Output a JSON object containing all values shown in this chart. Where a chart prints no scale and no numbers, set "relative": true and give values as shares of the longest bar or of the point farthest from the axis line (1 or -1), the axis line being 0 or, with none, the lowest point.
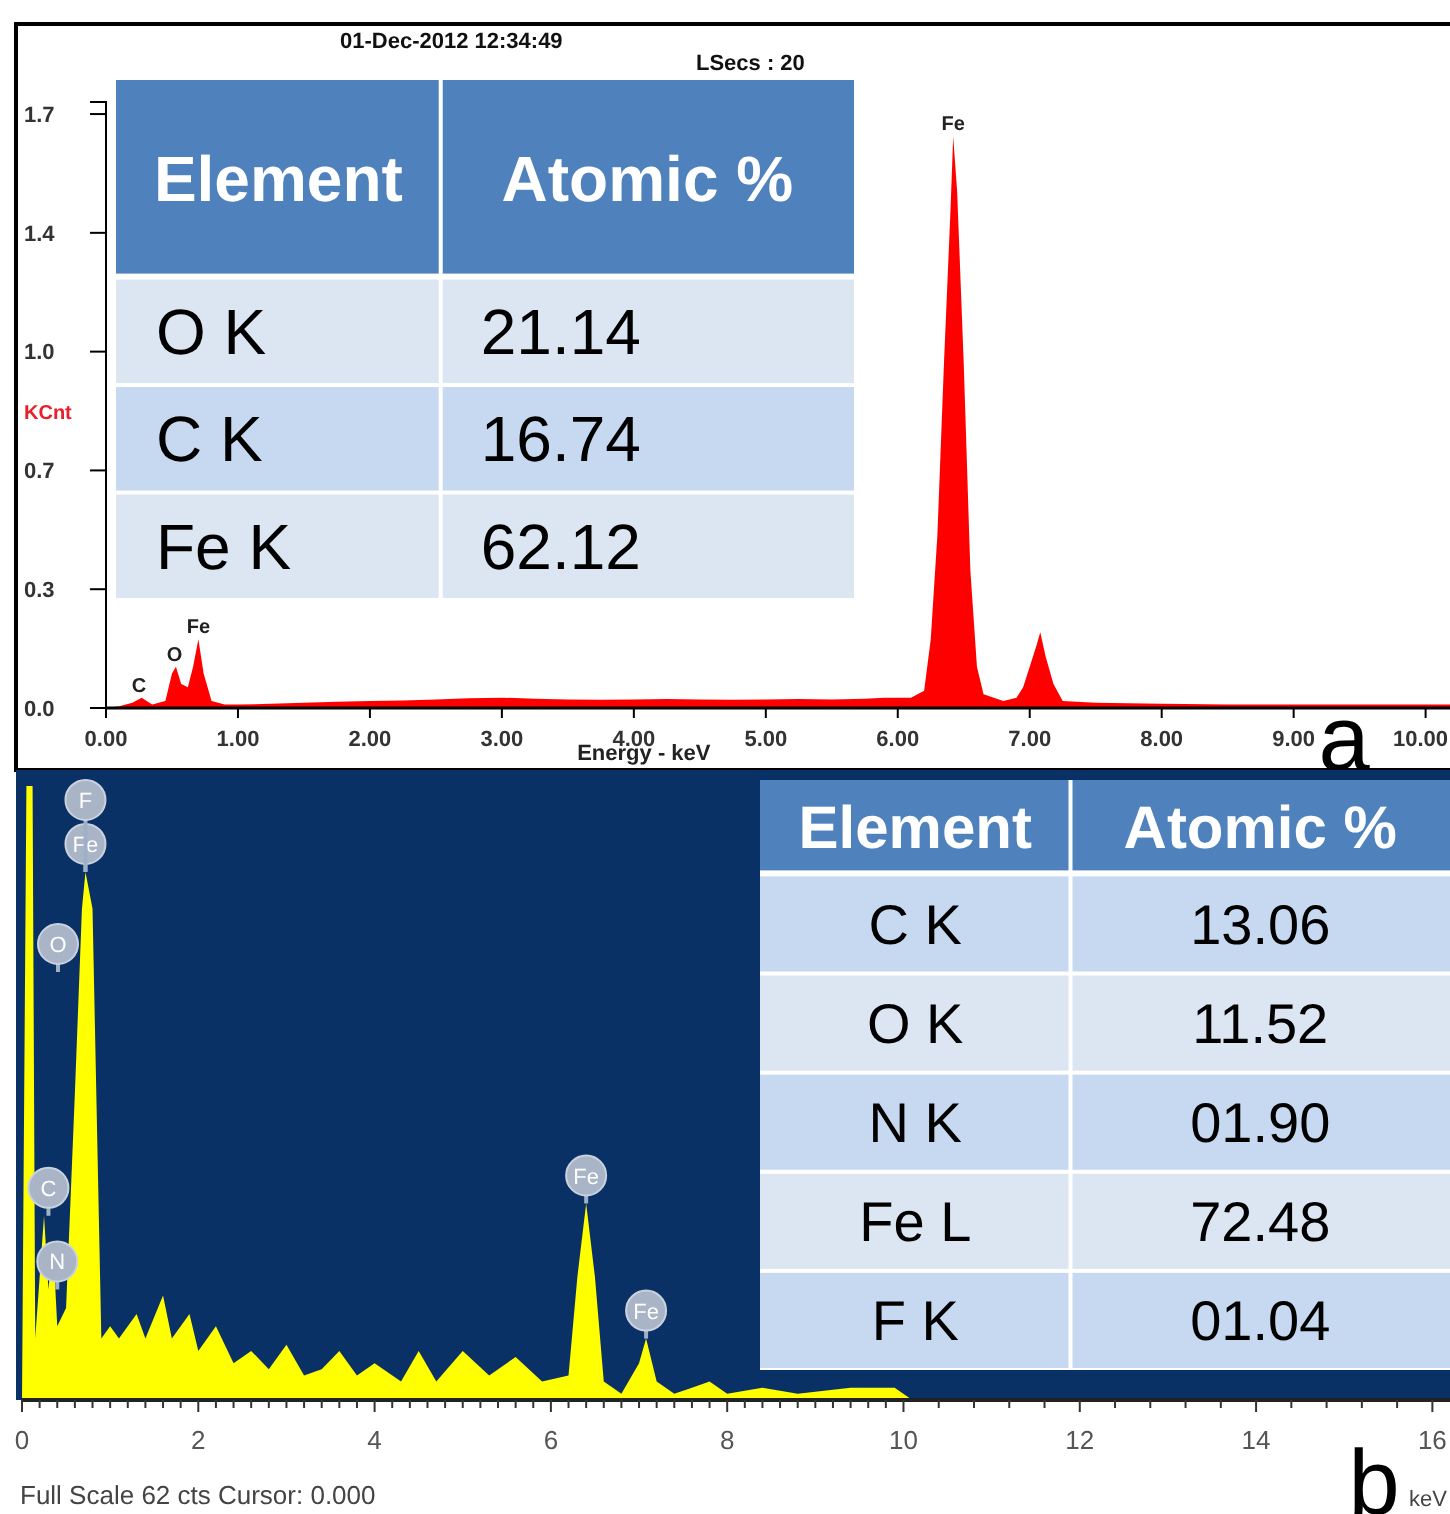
{
  "chart_data": [
    {
      "type": "area",
      "xlabel": "Energy - keV",
      "ylabel": "KCnt",
      "annotations": [
        "01-Dec-2012 12:34:49",
        "LSecs : 20",
        "a",
        {
          "text": "C",
          "x": 0.25,
          "y": 0.03
        },
        {
          "text": "O",
          "x": 0.52,
          "y": 0.12
        },
        {
          "text": "Fe",
          "x": 0.7,
          "y": 0.2
        },
        {
          "text": "Fe",
          "x": 6.42,
          "y": 1.66
        }
      ],
      "x": [
        0,
        0.1,
        0.2,
        0.27,
        0.35,
        0.45,
        0.5,
        0.53,
        0.57,
        0.62,
        0.66,
        0.7,
        0.74,
        0.8,
        0.9,
        1.0,
        1.25,
        1.5,
        1.75,
        2.0,
        2.25,
        2.5,
        2.75,
        3.0,
        3.25,
        3.5,
        3.75,
        4.0,
        4.25,
        4.5,
        4.75,
        5.0,
        5.25,
        5.5,
        5.75,
        5.9,
        6.1,
        6.2,
        6.25,
        6.3,
        6.35,
        6.4,
        6.42,
        6.45,
        6.5,
        6.55,
        6.6,
        6.65,
        6.8,
        6.9,
        6.95,
        7.0,
        7.05,
        7.08,
        7.12,
        7.18,
        7.25,
        7.5,
        8.0,
        8.5,
        9.0,
        9.5,
        10.0,
        10.2
      ],
      "series": [
        {
          "color": "#ff0000",
          "values": [
            0,
            0.005,
            0.015,
            0.03,
            0.01,
            0.02,
            0.1,
            0.12,
            0.07,
            0.06,
            0.12,
            0.2,
            0.1,
            0.02,
            0.01,
            0.01,
            0.012,
            0.015,
            0.018,
            0.02,
            0.022,
            0.025,
            0.028,
            0.03,
            0.027,
            0.025,
            0.024,
            0.025,
            0.026,
            0.025,
            0.024,
            0.025,
            0.026,
            0.025,
            0.027,
            0.03,
            0.03,
            0.05,
            0.2,
            0.5,
            1.0,
            1.45,
            1.66,
            1.5,
            1.0,
            0.4,
            0.12,
            0.04,
            0.02,
            0.03,
            0.06,
            0.12,
            0.18,
            0.22,
            0.15,
            0.07,
            0.02,
            0.015,
            0.012,
            0.01,
            0.01,
            0.01,
            0.01,
            0.01
          ]
        }
      ],
      "xlim": [
        0,
        10.2
      ],
      "xticks": [
        {
          "value": 0,
          "label": "0.00"
        },
        {
          "value": 1,
          "label": "1.00"
        },
        {
          "value": 2,
          "label": "2.00"
        },
        {
          "value": 3,
          "label": "3.00"
        },
        {
          "value": 4,
          "label": "4.00"
        },
        {
          "value": 5,
          "label": "5.00"
        },
        {
          "value": 6,
          "label": "6.00"
        },
        {
          "value": 7,
          "label": "7.00"
        },
        {
          "value": 8,
          "label": "8.00"
        },
        {
          "value": 9,
          "label": "9.00"
        },
        {
          "value": 10,
          "label": "10.00"
        }
      ],
      "ylim": [
        0,
        1.76
      ],
      "yticks": [
        {
          "value": 0,
          "label": "0.0"
        },
        {
          "value": 0.345,
          "label": "0.3"
        },
        {
          "value": 0.69,
          "label": "0.7"
        },
        {
          "value": 1.035,
          "label": "1.0"
        },
        {
          "value": 1.38,
          "label": "1.4"
        },
        {
          "value": 1.725,
          "label": "1.7"
        }
      ],
      "tick_labels": "xy"
    },
    {
      "type": "other",
      "xlabel": "Element",
      "ylabel": "Atomic %",
      "categories": [
        "O K",
        "C K",
        "Fe K"
      ],
      "value_labels": [
        "21.14",
        "16.74",
        "62.12"
      ]
    },
    {
      "type": "area",
      "xlabel": "keV",
      "relative": true,
      "annotations": [
        "Full Scale 62 cts Cursor: 0.000",
        "b",
        "O",
        {
          "text": "Fe",
          "x": 0.72,
          "y": 0.86
        },
        {
          "text": "F",
          "x": 0.72,
          "y": 0.86
        },
        {
          "text": "C",
          "x": 0.3,
          "y": 0.3
        },
        {
          "text": "N",
          "x": 0.4,
          "y": 0.18
        },
        {
          "text": "Fe",
          "x": 6.4,
          "y": 0.32
        },
        {
          "text": "Fe",
          "x": 7.08,
          "y": 0.1
        }
      ],
      "x": [
        0,
        0.05,
        0.12,
        0.15,
        0.2,
        0.25,
        0.3,
        0.35,
        0.4,
        0.5,
        0.6,
        0.68,
        0.72,
        0.8,
        0.9,
        1.0,
        1.1,
        1.3,
        1.4,
        1.6,
        1.7,
        1.9,
        2.0,
        2.2,
        2.4,
        2.6,
        2.8,
        3.0,
        3.2,
        3.4,
        3.6,
        3.8,
        4.0,
        4.3,
        4.5,
        4.7,
        5.0,
        5.3,
        5.6,
        5.9,
        6.2,
        6.3,
        6.4,
        6.5,
        6.6,
        6.8,
        7.0,
        7.08,
        7.2,
        7.4,
        7.6,
        7.8,
        8.0,
        8.4,
        8.8,
        9.4,
        9.9,
        10.1,
        16.2
      ],
      "series": [
        {
          "color": "#ffff00",
          "values": [
            0,
            1.0,
            1.0,
            0.1,
            0.2,
            0.3,
            0.18,
            0.26,
            0.12,
            0.15,
            0.5,
            0.8,
            0.86,
            0.8,
            0.1,
            0.12,
            0.1,
            0.14,
            0.1,
            0.17,
            0.1,
            0.14,
            0.08,
            0.12,
            0.06,
            0.08,
            0.05,
            0.09,
            0.04,
            0.05,
            0.08,
            0.04,
            0.06,
            0.03,
            0.08,
            0.03,
            0.08,
            0.04,
            0.07,
            0.03,
            0.04,
            0.2,
            0.32,
            0.2,
            0.03,
            0.01,
            0.06,
            0.1,
            0.03,
            0.01,
            0.02,
            0.03,
            0.01,
            0.02,
            0.01,
            0.02,
            0.02,
            0,
            0
          ]
        }
      ],
      "xlim": [
        0,
        16.2
      ],
      "xticks": [
        0,
        {
          "value": 0.2,
          "label": null
        },
        {
          "value": 0.4,
          "label": null
        },
        {
          "value": 0.6,
          "label": null
        },
        {
          "value": 0.8,
          "label": null
        },
        {
          "value": 1,
          "label": null
        },
        {
          "value": 1.2,
          "label": null
        },
        {
          "value": 1.4,
          "label": null
        },
        {
          "value": 1.6,
          "label": null
        },
        {
          "value": 1.8,
          "label": null
        },
        2,
        {
          "value": 2.2,
          "label": null
        },
        {
          "value": 2.4,
          "label": null
        },
        {
          "value": 2.6,
          "label": null
        },
        {
          "value": 2.8,
          "label": null
        },
        {
          "value": 3,
          "label": null
        },
        {
          "value": 3.2,
          "label": null
        },
        {
          "value": 3.4,
          "label": null
        },
        {
          "value": 3.6,
          "label": null
        },
        {
          "value": 3.8,
          "label": null
        },
        4,
        {
          "value": 4.2,
          "label": null
        },
        {
          "value": 4.4,
          "label": null
        },
        {
          "value": 4.6,
          "label": null
        },
        {
          "value": 4.8,
          "label": null
        },
        {
          "value": 5,
          "label": null
        },
        {
          "value": 5.2,
          "label": null
        },
        {
          "value": 5.4,
          "label": null
        },
        {
          "value": 5.6,
          "label": null
        },
        {
          "value": 5.8,
          "label": null
        },
        6,
        {
          "value": 6.2,
          "label": null
        },
        {
          "value": 6.4,
          "label": null
        },
        {
          "value": 6.6,
          "label": null
        },
        {
          "value": 6.8,
          "label": null
        },
        {
          "value": 7,
          "label": null
        },
        {
          "value": 7.2,
          "label": null
        },
        {
          "value": 7.4,
          "label": null
        },
        {
          "value": 7.6,
          "label": null
        },
        {
          "value": 7.8,
          "label": null
        },
        8,
        {
          "value": 8.2,
          "label": null
        },
        {
          "value": 8.4,
          "label": null
        },
        {
          "value": 8.6,
          "label": null
        },
        {
          "value": 8.8,
          "label": null
        },
        {
          "value": 9,
          "label": null
        },
        {
          "value": 9.2,
          "label": null
        },
        {
          "value": 9.4,
          "label": null
        },
        {
          "value": 9.6,
          "label": null
        },
        {
          "value": 9.8,
          "label": null
        },
        10,
        {
          "value": 10.4,
          "label": null
        },
        {
          "value": 10.8,
          "label": null
        },
        {
          "value": 11.2,
          "label": null
        },
        {
          "value": 11.6,
          "label": null
        },
        12,
        {
          "value": 12.4,
          "label": null
        },
        {
          "value": 12.8,
          "label": null
        },
        {
          "value": 13.2,
          "label": null
        },
        {
          "value": 13.6,
          "label": null
        },
        14,
        {
          "value": 14.4,
          "label": null
        },
        {
          "value": 14.8,
          "label": null
        },
        {
          "value": 15.2,
          "label": null
        },
        {
          "value": 15.6,
          "label": null
        },
        16
      ]
    },
    {
      "type": "other",
      "xlabel": "Element",
      "ylabel": "Atomic %",
      "categories": [
        "C K",
        "O K",
        "N K",
        "Fe L",
        "F K"
      ],
      "value_labels": [
        "13.06",
        "11.52",
        "01.90",
        "72.48",
        "01.04"
      ]
    }
  ]
}
